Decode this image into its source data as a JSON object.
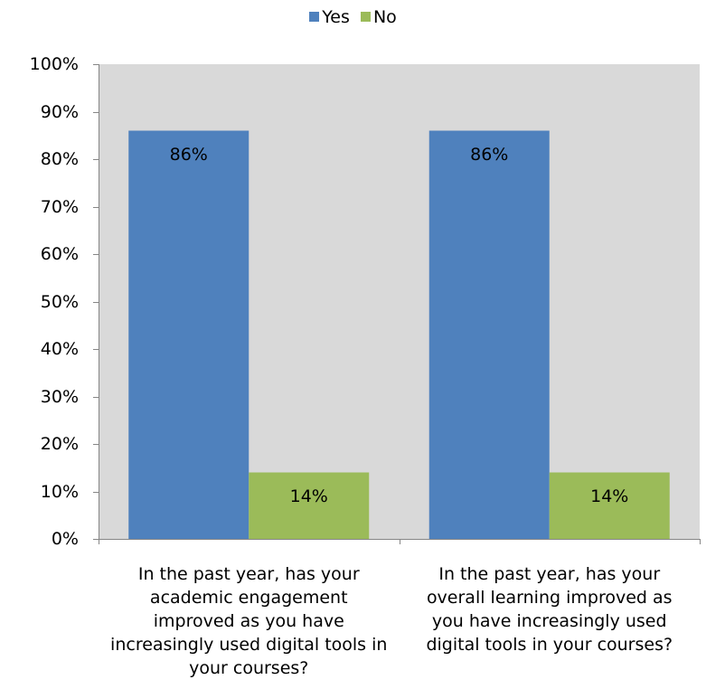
{
  "chart_data": {
    "type": "bar",
    "categories": [
      "In the past year, has your academic engagement improved as you have increasingly used digital tools in your courses?",
      "In the past year, has your overall learning improved as you have increasingly used digital tools in your courses?"
    ],
    "series": [
      {
        "name": "Yes",
        "values": [
          86,
          86
        ],
        "labels": [
          "86%",
          "86%"
        ],
        "color": "#4F81BD"
      },
      {
        "name": "No",
        "values": [
          14,
          14
        ],
        "labels": [
          "14%",
          "14%"
        ],
        "color": "#9BBB59"
      }
    ],
    "ylim": [
      0,
      100
    ],
    "yticks": [
      "0%",
      "10%",
      "20%",
      "30%",
      "40%",
      "50%",
      "60%",
      "70%",
      "80%",
      "90%",
      "100%"
    ],
    "grid": false,
    "legend_position": "top",
    "plot_background": "#D9D9D9"
  }
}
